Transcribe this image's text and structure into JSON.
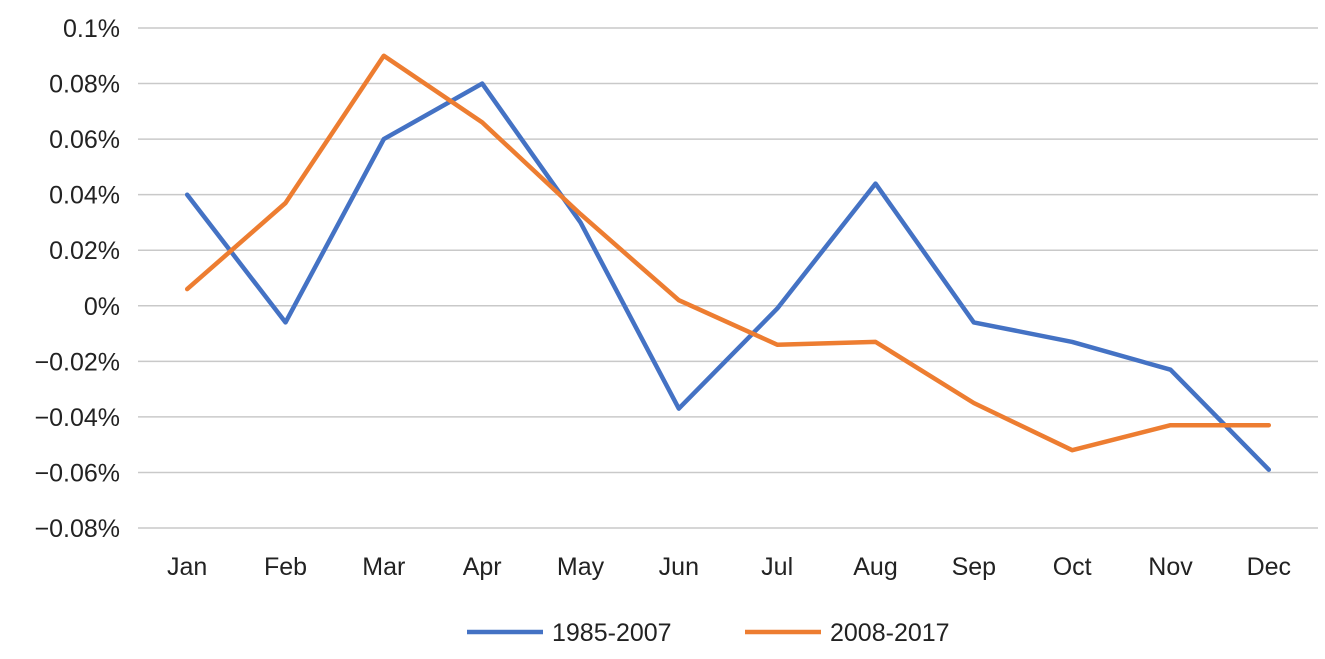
{
  "chart_data": {
    "type": "line",
    "categories": [
      "Jan",
      "Feb",
      "Mar",
      "Apr",
      "May",
      "Jun",
      "Jul",
      "Aug",
      "Sep",
      "Oct",
      "Nov",
      "Dec"
    ],
    "y_ticks": [
      "0.1%",
      "0.08%",
      "0.06%",
      "0.04%",
      "0.02%",
      "0%",
      "−0.02%",
      "−0.04%",
      "−0.06%",
      "−0.08%"
    ],
    "ylim": [
      -0.08,
      0.1
    ],
    "y_unit": "%",
    "grid": true,
    "legend_position": "bottom",
    "series": [
      {
        "name": "1985-2007",
        "color": "#4472C4",
        "values": [
          0.04,
          -0.006,
          0.06,
          0.08,
          0.03,
          -0.037,
          -0.001,
          0.044,
          -0.006,
          -0.013,
          -0.023,
          -0.059
        ]
      },
      {
        "name": "2008-2017",
        "color": "#ED7D31",
        "values": [
          0.006,
          0.037,
          0.09,
          0.066,
          0.033,
          0.002,
          -0.014,
          -0.013,
          -0.035,
          -0.052,
          -0.043,
          -0.043
        ]
      }
    ]
  }
}
